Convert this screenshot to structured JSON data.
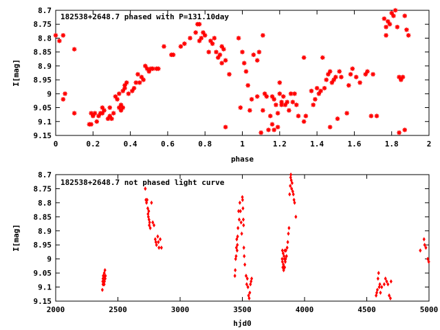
{
  "chart_data": [
    {
      "type": "scatter",
      "title": "182538+2648.7 phased with P=131.10day",
      "xlabel": "phase",
      "ylabel": "I[mag]",
      "xlim": [
        0,
        2
      ],
      "ylim": [
        8.7,
        9.15
      ],
      "y_inverted": true,
      "xticks": [
        "0",
        "0.2",
        "0.4",
        "0.6",
        "0.8",
        "1",
        "1.2",
        "1.4",
        "1.6",
        "1.8",
        "2"
      ],
      "yticks": [
        "8.7",
        "8.75",
        "8.8",
        "8.85",
        "8.9",
        "8.95",
        "9",
        "9.05",
        "9.1",
        "9.15"
      ],
      "color": "#ff0000",
      "marker": "star",
      "points": [
        [
          0.0,
          8.79
        ],
        [
          0.02,
          8.81
        ],
        [
          0.04,
          8.79
        ],
        [
          0.04,
          9.02
        ],
        [
          0.05,
          9.0
        ],
        [
          0.1,
          8.84
        ],
        [
          0.1,
          9.07
        ],
        [
          0.18,
          9.11
        ],
        [
          0.19,
          9.11
        ],
        [
          0.19,
          9.07
        ],
        [
          0.2,
          9.08
        ],
        [
          0.21,
          9.07
        ],
        [
          0.22,
          9.1
        ],
        [
          0.23,
          9.08
        ],
        [
          0.24,
          9.07
        ],
        [
          0.25,
          9.05
        ],
        [
          0.25,
          9.07
        ],
        [
          0.26,
          9.06
        ],
        [
          0.28,
          9.09
        ],
        [
          0.29,
          9.05
        ],
        [
          0.29,
          9.08
        ],
        [
          0.3,
          9.09
        ],
        [
          0.31,
          9.07
        ],
        [
          0.32,
          9.01
        ],
        [
          0.33,
          9.02
        ],
        [
          0.34,
          9.0
        ],
        [
          0.34,
          9.05
        ],
        [
          0.35,
          9.04
        ],
        [
          0.35,
          9.06
        ],
        [
          0.36,
          8.99
        ],
        [
          0.36,
          9.05
        ],
        [
          0.37,
          8.98
        ],
        [
          0.37,
          8.97
        ],
        [
          0.38,
          8.96
        ],
        [
          0.39,
          9.0
        ],
        [
          0.41,
          8.99
        ],
        [
          0.42,
          8.98
        ],
        [
          0.43,
          8.96
        ],
        [
          0.44,
          8.93
        ],
        [
          0.45,
          8.96
        ],
        [
          0.46,
          8.94
        ],
        [
          0.47,
          8.95
        ],
        [
          0.48,
          8.9
        ],
        [
          0.49,
          8.91
        ],
        [
          0.5,
          8.92
        ],
        [
          0.51,
          8.91
        ],
        [
          0.52,
          8.91
        ],
        [
          0.54,
          8.91
        ],
        [
          0.55,
          8.91
        ],
        [
          0.58,
          8.83
        ],
        [
          0.62,
          8.86
        ],
        [
          0.63,
          8.86
        ],
        [
          0.67,
          8.83
        ],
        [
          0.69,
          8.82
        ],
        [
          0.72,
          8.8
        ],
        [
          0.75,
          8.78
        ],
        [
          0.76,
          8.75
        ],
        [
          0.77,
          8.75
        ],
        [
          0.77,
          8.81
        ],
        [
          0.78,
          8.8
        ],
        [
          0.79,
          8.78
        ],
        [
          0.8,
          8.79
        ],
        [
          0.82,
          8.85
        ],
        [
          0.83,
          8.81
        ],
        [
          0.84,
          8.82
        ],
        [
          0.85,
          8.8
        ],
        [
          0.86,
          8.85
        ],
        [
          0.87,
          8.87
        ],
        [
          0.88,
          8.86
        ],
        [
          0.89,
          8.83
        ],
        [
          0.89,
          8.89
        ],
        [
          0.9,
          8.84
        ],
        [
          0.91,
          8.88
        ],
        [
          0.91,
          9.12
        ],
        [
          0.93,
          8.93
        ],
        [
          0.98,
          8.8
        ],
        [
          0.99,
          9.05
        ],
        [
          1.0,
          8.85
        ],
        [
          1.01,
          8.89
        ],
        [
          1.02,
          8.92
        ],
        [
          1.03,
          8.97
        ],
        [
          1.04,
          9.06
        ],
        [
          1.05,
          9.02
        ],
        [
          1.06,
          8.86
        ],
        [
          1.08,
          9.01
        ],
        [
          1.08,
          8.88
        ],
        [
          1.09,
          8.85
        ],
        [
          1.1,
          9.14
        ],
        [
          1.11,
          9.06
        ],
        [
          1.11,
          8.79
        ],
        [
          1.12,
          9.0
        ],
        [
          1.13,
          9.01
        ],
        [
          1.14,
          9.13
        ],
        [
          1.15,
          9.08
        ],
        [
          1.16,
          9.01
        ],
        [
          1.16,
          9.11
        ],
        [
          1.17,
          9.13
        ],
        [
          1.17,
          9.02
        ],
        [
          1.18,
          9.04
        ],
        [
          1.19,
          9.12
        ],
        [
          1.19,
          9.07
        ],
        [
          1.2,
          9.0
        ],
        [
          1.2,
          8.96
        ],
        [
          1.21,
          9.04
        ],
        [
          1.21,
          9.03
        ],
        [
          1.22,
          9.01
        ],
        [
          1.23,
          9.04
        ],
        [
          1.24,
          9.03
        ],
        [
          1.25,
          9.06
        ],
        [
          1.26,
          9.0
        ],
        [
          1.27,
          9.03
        ],
        [
          1.28,
          9.0
        ],
        [
          1.29,
          9.04
        ],
        [
          1.3,
          9.08
        ],
        [
          1.33,
          8.87
        ],
        [
          1.33,
          9.1
        ],
        [
          1.34,
          9.08
        ],
        [
          1.37,
          8.99
        ],
        [
          1.38,
          9.04
        ],
        [
          1.39,
          9.02
        ],
        [
          1.4,
          8.98
        ],
        [
          1.41,
          9.0
        ],
        [
          1.42,
          8.99
        ],
        [
          1.43,
          8.87
        ],
        [
          1.44,
          8.98
        ],
        [
          1.45,
          8.95
        ],
        [
          1.46,
          8.93
        ],
        [
          1.47,
          8.92
        ],
        [
          1.47,
          9.12
        ],
        [
          1.48,
          8.96
        ],
        [
          1.49,
          8.95
        ],
        [
          1.5,
          8.94
        ],
        [
          1.51,
          9.09
        ],
        [
          1.52,
          8.92
        ],
        [
          1.53,
          8.94
        ],
        [
          1.56,
          9.07
        ],
        [
          1.57,
          8.97
        ],
        [
          1.58,
          8.93
        ],
        [
          1.59,
          8.91
        ],
        [
          1.61,
          8.94
        ],
        [
          1.63,
          8.96
        ],
        [
          1.66,
          8.93
        ],
        [
          1.67,
          8.92
        ],
        [
          1.69,
          9.08
        ],
        [
          1.7,
          8.93
        ],
        [
          1.72,
          9.08
        ],
        [
          1.76,
          8.73
        ],
        [
          1.77,
          8.76
        ],
        [
          1.78,
          8.74
        ],
        [
          1.79,
          8.75
        ],
        [
          1.8,
          8.71
        ],
        [
          1.81,
          8.72
        ],
        [
          1.82,
          8.7
        ],
        [
          1.83,
          8.76
        ],
        [
          1.84,
          9.14
        ],
        [
          1.84,
          8.94
        ],
        [
          1.85,
          8.95
        ],
        [
          1.86,
          8.94
        ],
        [
          1.87,
          9.13
        ],
        [
          1.87,
          8.72
        ],
        [
          1.88,
          8.77
        ],
        [
          1.89,
          8.79
        ],
        [
          1.77,
          8.79
        ]
      ]
    },
    {
      "type": "scatter",
      "title": "182538+2648.7 not phased light curve",
      "xlabel": "hjd0",
      "ylabel": "I[mag]",
      "xlim": [
        2000,
        5000
      ],
      "ylim": [
        8.7,
        9.15
      ],
      "y_inverted": true,
      "xticks": [
        "2000",
        "2500",
        "3000",
        "3500",
        "4000",
        "4500",
        "5000"
      ],
      "yticks": [
        "8.7",
        "8.75",
        "8.8",
        "8.85",
        "8.9",
        "8.95",
        "9",
        "9.05",
        "9.1",
        "9.15"
      ],
      "color": "#ff0000",
      "marker": "diamond",
      "points": [
        [
          2375,
          9.11
        ],
        [
          2378,
          9.08
        ],
        [
          2380,
          9.07
        ],
        [
          2382,
          9.06
        ],
        [
          2384,
          9.07
        ],
        [
          2386,
          9.09
        ],
        [
          2388,
          9.06
        ],
        [
          2390,
          9.05
        ],
        [
          2392,
          9.08
        ],
        [
          2394,
          9.07
        ],
        [
          2396,
          9.04
        ],
        [
          2398,
          9.07
        ],
        [
          2400,
          9.06
        ],
        [
          2380,
          9.09
        ],
        [
          2390,
          9.09
        ],
        [
          2720,
          8.75
        ],
        [
          2725,
          8.79
        ],
        [
          2730,
          8.8
        ],
        [
          2735,
          8.79
        ],
        [
          2740,
          8.82
        ],
        [
          2742,
          8.84
        ],
        [
          2745,
          8.85
        ],
        [
          2748,
          8.83
        ],
        [
          2750,
          8.86
        ],
        [
          2752,
          8.88
        ],
        [
          2755,
          8.87
        ],
        [
          2760,
          8.89
        ],
        [
          2770,
          8.8
        ],
        [
          2780,
          8.87
        ],
        [
          2790,
          8.88
        ],
        [
          2800,
          8.93
        ],
        [
          2805,
          8.94
        ],
        [
          2810,
          8.95
        ],
        [
          2820,
          8.92
        ],
        [
          2825,
          8.94
        ],
        [
          2830,
          8.96
        ],
        [
          2840,
          8.93
        ],
        [
          2850,
          8.96
        ],
        [
          3440,
          9.06
        ],
        [
          3443,
          9.04
        ],
        [
          3446,
          9.0
        ],
        [
          3450,
          8.99
        ],
        [
          3452,
          8.96
        ],
        [
          3455,
          8.93
        ],
        [
          3458,
          8.97
        ],
        [
          3460,
          8.95
        ],
        [
          3462,
          8.92
        ],
        [
          3465,
          8.89
        ],
        [
          3470,
          8.83
        ],
        [
          3475,
          8.86
        ],
        [
          3480,
          8.8
        ],
        [
          3485,
          8.83
        ],
        [
          3490,
          8.87
        ],
        [
          3495,
          8.91
        ],
        [
          3500,
          8.78
        ],
        [
          3502,
          8.79
        ],
        [
          3505,
          8.82
        ],
        [
          3508,
          8.86
        ],
        [
          3510,
          8.88
        ],
        [
          3512,
          8.96
        ],
        [
          3515,
          8.99
        ],
        [
          3520,
          9.02
        ],
        [
          3530,
          9.06
        ],
        [
          3535,
          9.09
        ],
        [
          3540,
          9.07
        ],
        [
          3545,
          9.1
        ],
        [
          3550,
          9.13
        ],
        [
          3555,
          9.14
        ],
        [
          3560,
          9.12
        ],
        [
          3565,
          9.09
        ],
        [
          3570,
          9.08
        ],
        [
          3575,
          9.07
        ],
        [
          3820,
          9.0
        ],
        [
          3822,
          9.01
        ],
        [
          3825,
          9.03
        ],
        [
          3828,
          8.98
        ],
        [
          3830,
          9.02
        ],
        [
          3832,
          9.04
        ],
        [
          3835,
          8.99
        ],
        [
          3838,
          9.0
        ],
        [
          3840,
          9.03
        ],
        [
          3845,
          9.01
        ],
        [
          3848,
          9.0
        ],
        [
          3850,
          8.97
        ],
        [
          3855,
          8.99
        ],
        [
          3860,
          8.96
        ],
        [
          3865,
          8.94
        ],
        [
          3870,
          8.91
        ],
        [
          3875,
          8.89
        ],
        [
          3880,
          8.77
        ],
        [
          3885,
          8.74
        ],
        [
          3888,
          8.71
        ],
        [
          3890,
          8.7
        ],
        [
          3893,
          8.72
        ],
        [
          3896,
          8.75
        ],
        [
          3900,
          8.73
        ],
        [
          3905,
          8.76
        ],
        [
          3910,
          8.77
        ],
        [
          3915,
          8.79
        ],
        [
          3920,
          8.8
        ],
        [
          3930,
          8.85
        ],
        [
          3822,
          8.97
        ],
        [
          3835,
          9.03
        ],
        [
          3842,
          8.97
        ],
        [
          4575,
          9.13
        ],
        [
          4580,
          9.12
        ],
        [
          4585,
          9.11
        ],
        [
          4590,
          9.07
        ],
        [
          4595,
          9.05
        ],
        [
          4600,
          9.1
        ],
        [
          4605,
          9.09
        ],
        [
          4610,
          9.12
        ],
        [
          4620,
          9.1
        ],
        [
          4640,
          9.09
        ],
        [
          4650,
          9.07
        ],
        [
          4660,
          9.08
        ],
        [
          4670,
          9.09
        ],
        [
          4680,
          9.13
        ],
        [
          4690,
          9.14
        ],
        [
          4695,
          9.08
        ],
        [
          4930,
          8.97
        ],
        [
          4960,
          8.93
        ],
        [
          4965,
          8.95
        ],
        [
          4975,
          8.96
        ],
        [
          4990,
          9.0
        ],
        [
          4998,
          9.01
        ]
      ]
    }
  ]
}
